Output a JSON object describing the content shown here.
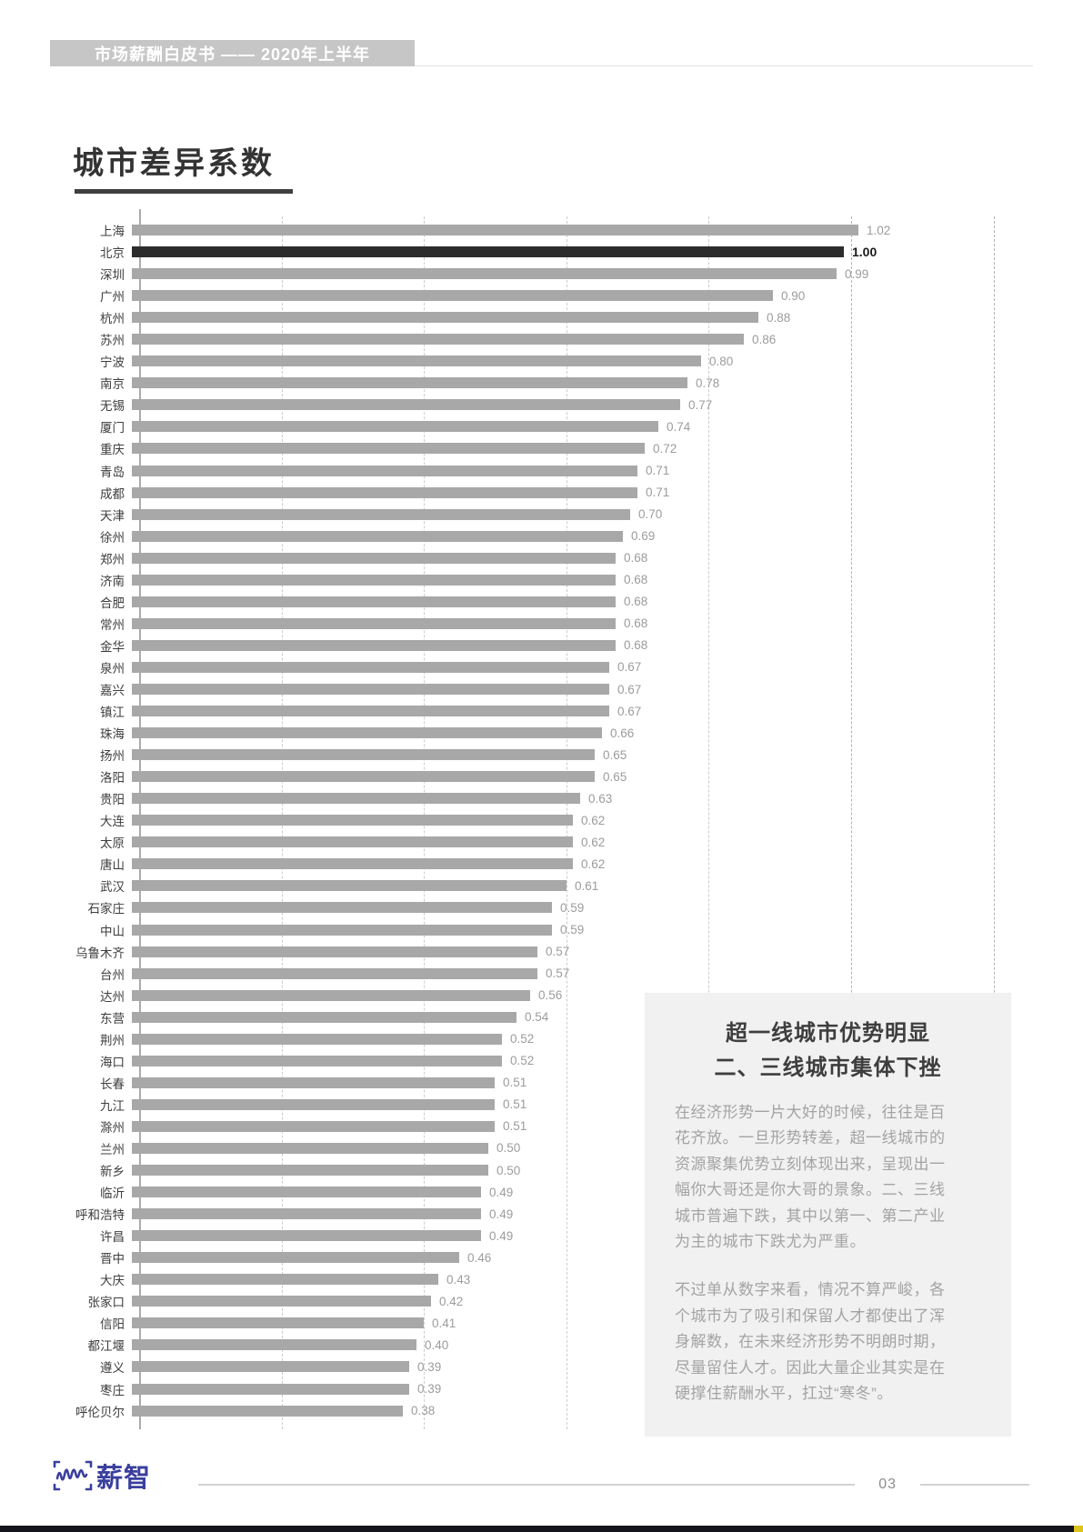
{
  "header": {
    "banner": "市场薪酬白皮书 —— 2020年上半年"
  },
  "page_title": "城市差异系数",
  "chart_data": {
    "type": "bar",
    "orientation": "horizontal",
    "title": "城市差异系数",
    "xlabel": "",
    "ylabel": "",
    "xlim": [
      0,
      1.2
    ],
    "gridline_values": [
      0.2,
      0.4,
      0.6,
      0.8,
      1.0,
      1.2
    ],
    "grid": "dashed-vertical",
    "categories": [
      "上海",
      "北京",
      "深圳",
      "广州",
      "杭州",
      "苏州",
      "宁波",
      "南京",
      "无锡",
      "厦门",
      "重庆",
      "青岛",
      "成都",
      "天津",
      "徐州",
      "郑州",
      "济南",
      "合肥",
      "常州",
      "金华",
      "泉州",
      "嘉兴",
      "镇江",
      "珠海",
      "扬州",
      "洛阳",
      "贵阳",
      "大连",
      "太原",
      "唐山",
      "武汉",
      "石家庄",
      "中山",
      "乌鲁木齐",
      "台州",
      "达州",
      "东营",
      "荆州",
      "海口",
      "长春",
      "九江",
      "滁州",
      "兰州",
      "新乡",
      "临沂",
      "呼和浩特",
      "许昌",
      "晋中",
      "大庆",
      "张家口",
      "信阳",
      "都江堰",
      "遵义",
      "枣庄",
      "呼伦贝尔"
    ],
    "values": [
      1.02,
      1.0,
      0.99,
      0.9,
      0.88,
      0.86,
      0.8,
      0.78,
      0.77,
      0.74,
      0.72,
      0.71,
      0.71,
      0.7,
      0.69,
      0.68,
      0.68,
      0.68,
      0.68,
      0.68,
      0.67,
      0.67,
      0.67,
      0.66,
      0.65,
      0.65,
      0.63,
      0.62,
      0.62,
      0.62,
      0.61,
      0.59,
      0.59,
      0.57,
      0.57,
      0.56,
      0.54,
      0.52,
      0.52,
      0.51,
      0.51,
      0.51,
      0.5,
      0.5,
      0.49,
      0.49,
      0.49,
      0.46,
      0.43,
      0.42,
      0.41,
      0.4,
      0.39,
      0.39,
      0.38
    ],
    "highlight_category": "北京",
    "highlight_index": 1,
    "bar_color": "#a8a8a8",
    "highlight_bar_color": "#2c2c2c"
  },
  "info_box": {
    "title_line1": "超一线城市优势明显",
    "title_line2": "二、三线城市集体下挫",
    "paragraph1_lines": [
      "在经济形势一片大好的时候，往往是百",
      "花齐放。一旦形势转差，超一线城市的",
      "资源聚集优势立刻体现出来，呈现出一",
      "幅你大哥还是你大哥的景象。二、三线",
      "城市普遍下跌，其中以第一、第二产业",
      "为主的城市下跌尤为严重。"
    ],
    "paragraph2_lines": [
      "不过单从数字来看，情况不算严峻，各",
      "个城市为了吸引和保留人才都使出了浑",
      "身解数，在未来经济形势不明朗时期，",
      "尽量留住人才。因此大量企业其实是在",
      "硬撑住薪酬水平，扛过“寒冬”。"
    ]
  },
  "footer": {
    "logo_text": "薪智",
    "page_number": "03"
  }
}
